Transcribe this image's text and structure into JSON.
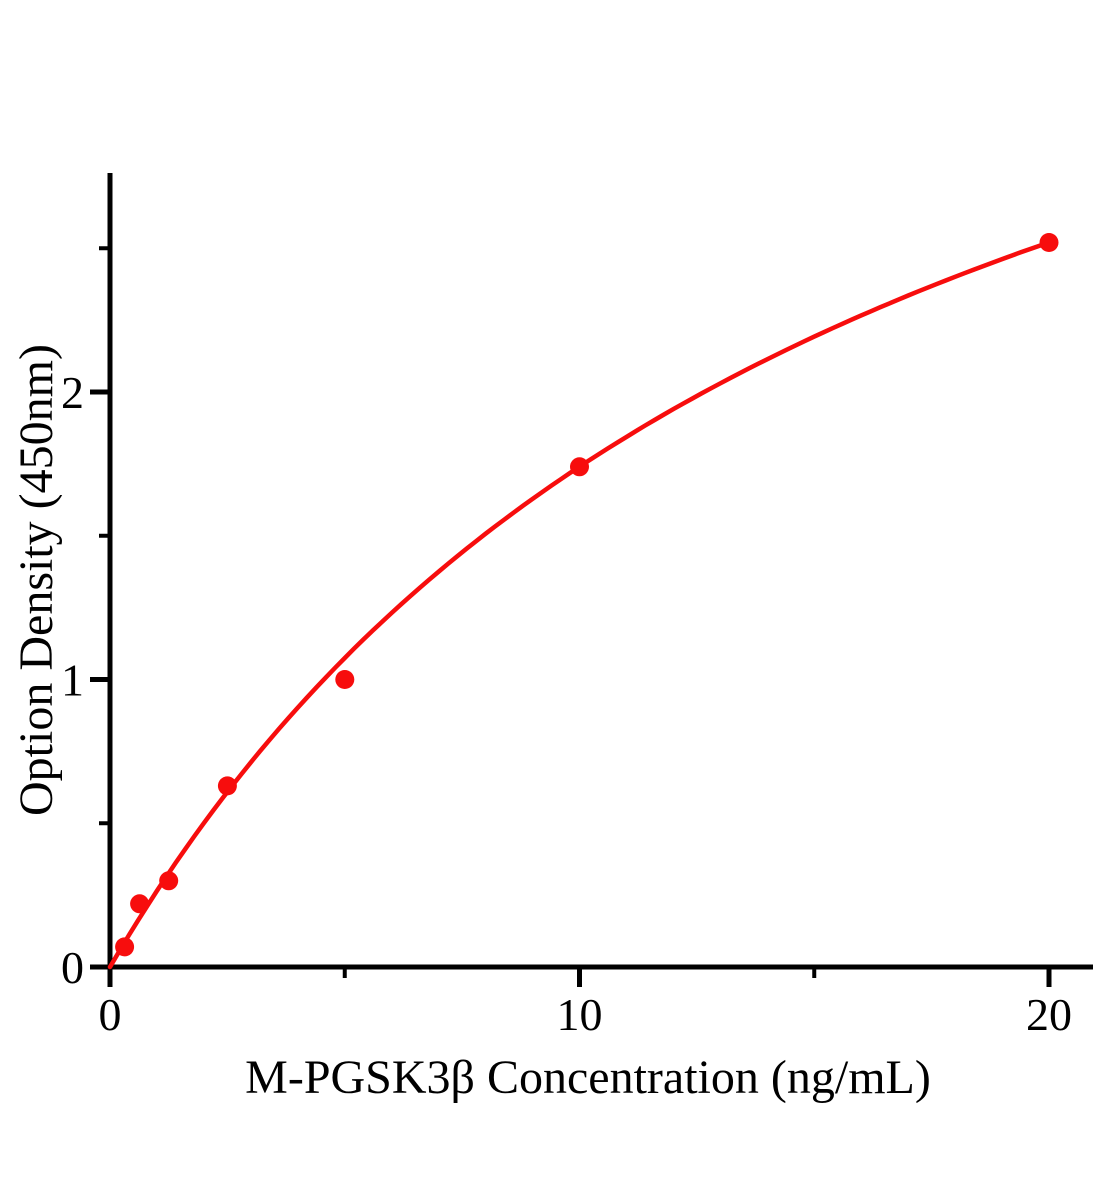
{
  "page": {
    "background": "#ffffff"
  },
  "chart_data": {
    "type": "scatter",
    "title": "",
    "xlabel": "M-PGSK3β Concentration（ng/mL）",
    "ylabel": "Option Density（450nm）",
    "x": [
      0.31,
      0.63,
      1.25,
      2.5,
      5,
      10,
      20
    ],
    "y": [
      0.07,
      0.22,
      0.3,
      0.63,
      1.0,
      1.74,
      2.52
    ],
    "curve_fit": {
      "model": "y = a*x / (b + x)",
      "a": 4.568,
      "b": 16.25,
      "x_start": 0,
      "x_end": 20
    },
    "xlim": [
      0,
      20.9
    ],
    "ylim": [
      0,
      2.77
    ],
    "x_major_ticks": [
      0,
      10,
      20
    ],
    "x_major_tick_labels": [
      "0",
      "10",
      "20"
    ],
    "x_minor_ticks": [
      5,
      15
    ],
    "y_major_ticks": [
      0,
      1,
      2
    ],
    "y_major_tick_labels": [
      "0",
      "1",
      "2"
    ],
    "y_minor_ticks": [
      0.5,
      1.5,
      2.5
    ],
    "grid": false,
    "legend": "none",
    "marker": "circle",
    "marker_color": "#f70d0d",
    "line_color": "#f70d0d",
    "axis_color": "#000000"
  }
}
